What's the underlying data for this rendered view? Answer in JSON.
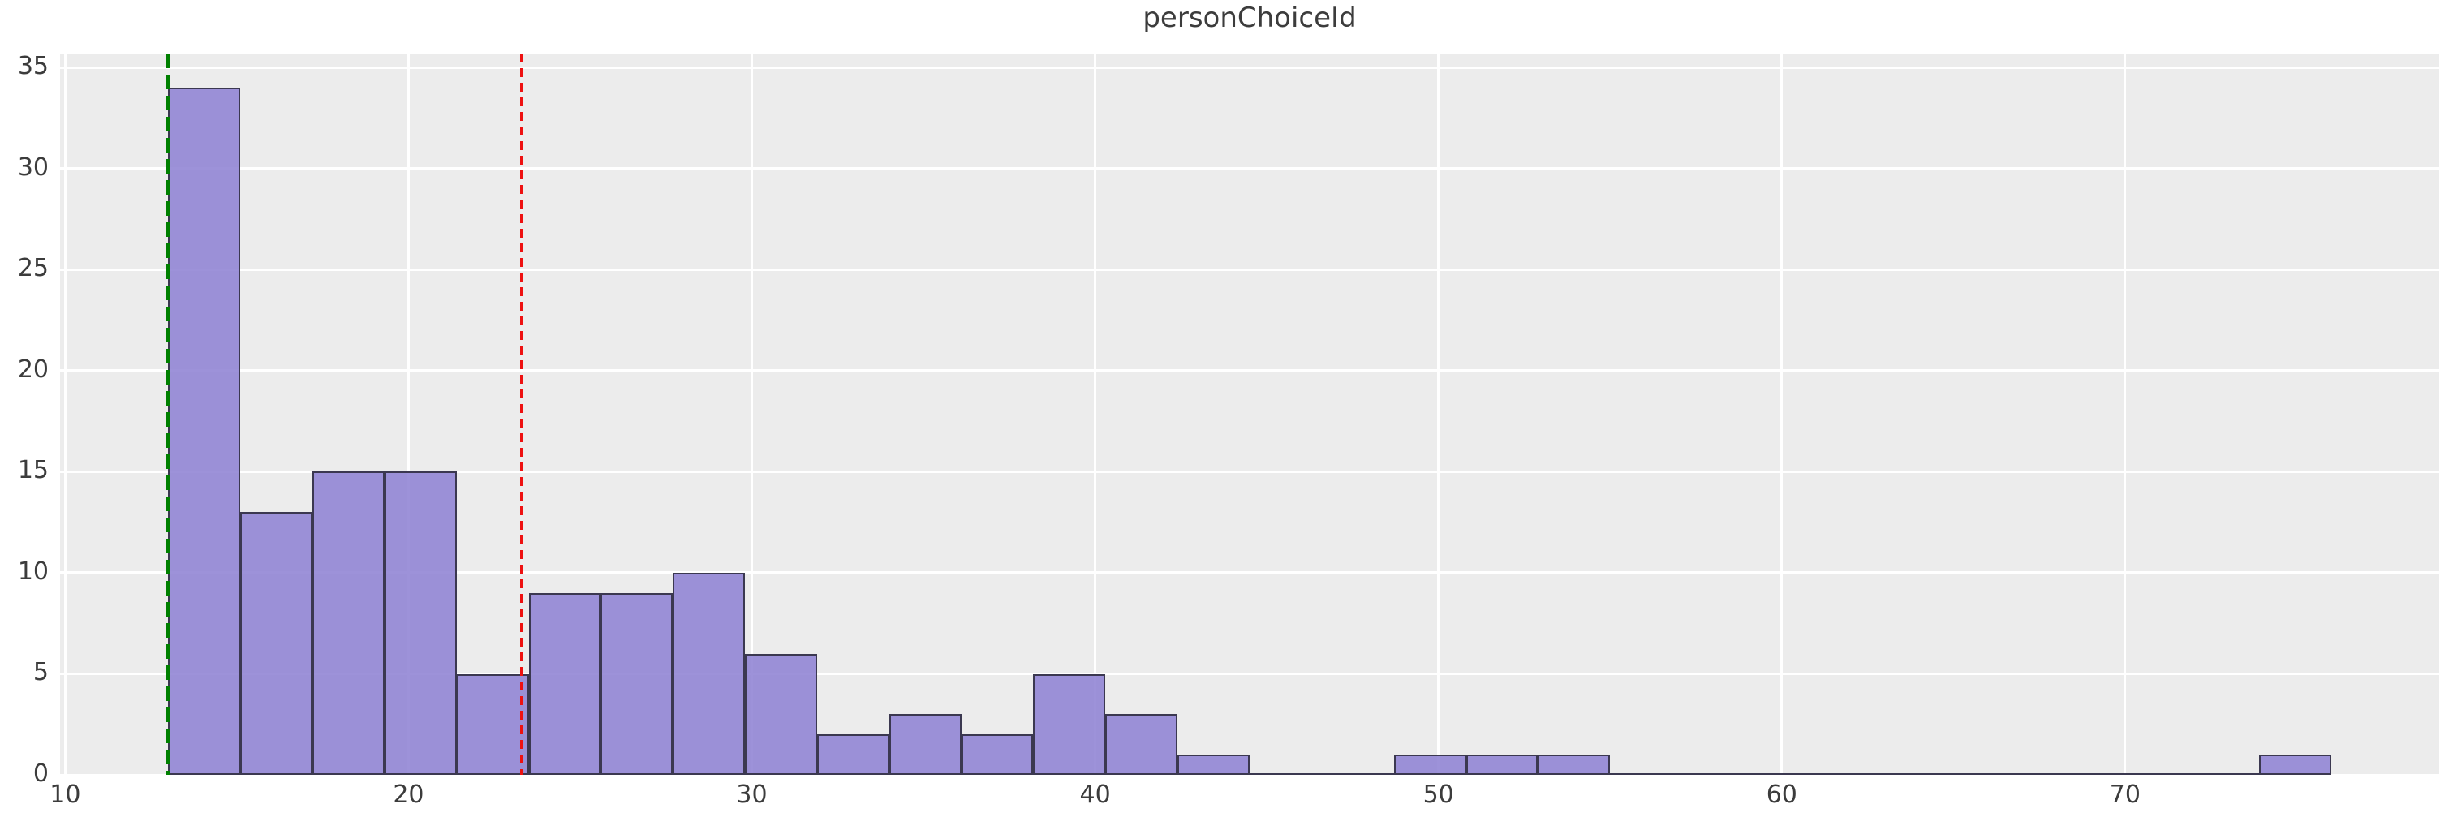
{
  "chart_data": {
    "type": "bar",
    "kind": "histogram",
    "title": "personChoiceId",
    "xlabel": "",
    "ylabel": "",
    "bin_edges": [
      13.0,
      15.1,
      17.2,
      19.3,
      21.4,
      23.5,
      25.6,
      27.7,
      29.8,
      31.9,
      34.0,
      36.1,
      38.2,
      40.3,
      42.4,
      44.5,
      46.6,
      48.7,
      50.8,
      52.9,
      55.0,
      57.1,
      59.2,
      61.3,
      63.4,
      65.5,
      67.6,
      69.7,
      71.8,
      73.9,
      76.0
    ],
    "counts": [
      34,
      13,
      15,
      15,
      5,
      9,
      9,
      10,
      6,
      2,
      3,
      2,
      5,
      3,
      1,
      0,
      0,
      1,
      1,
      1,
      0,
      0,
      0,
      0,
      0,
      0,
      0,
      0,
      0,
      1
    ],
    "x_ticks": [
      10,
      20,
      30,
      40,
      50,
      60,
      70
    ],
    "x_tick_labels": [
      "10",
      "20",
      "30",
      "40",
      "50",
      "60",
      "70"
    ],
    "y_ticks": [
      0,
      5,
      10,
      15,
      20,
      25,
      30,
      35
    ],
    "y_tick_labels": [
      "0",
      "5",
      "10",
      "15",
      "20",
      "25",
      "30",
      "35"
    ],
    "xlim": [
      9.85,
      79.15
    ],
    "ylim": [
      0,
      35.7
    ],
    "grid": true,
    "legend": null,
    "vlines": [
      {
        "x": 13.0,
        "color": "#008000",
        "style": "dashed",
        "name": "green-dashed-marker",
        "dash": 18,
        "gap": 8
      },
      {
        "x": 23.3,
        "color": "#ee1111",
        "style": "dashed",
        "name": "red-dashed-marker",
        "dash": 11,
        "gap": 7
      }
    ],
    "colors": {
      "bar_fill": "#9286d5",
      "bar_edge": "#3b3850",
      "plot_bg": "#ececec",
      "grid_line": "#ffffff",
      "text": "#3c3c3c",
      "figure_bg": "#ffffff"
    }
  }
}
